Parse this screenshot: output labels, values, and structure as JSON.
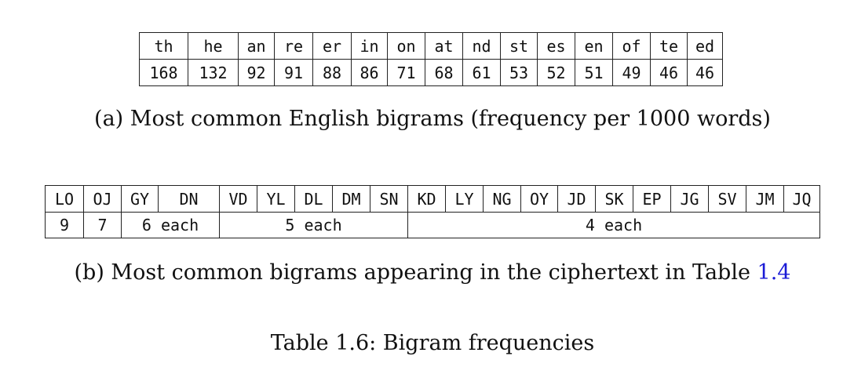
{
  "table_a": {
    "bigrams": [
      "th",
      "he",
      "an",
      "re",
      "er",
      "in",
      "on",
      "at",
      "nd",
      "st",
      "es",
      "en",
      "of",
      "te",
      "ed"
    ],
    "frequencies": [
      "168",
      "132",
      "92",
      "91",
      "88",
      "86",
      "71",
      "68",
      "61",
      "53",
      "52",
      "51",
      "49",
      "46",
      "46"
    ],
    "caption": "(a) Most common English bigrams (frequency per 1000 words)"
  },
  "table_b": {
    "bigrams": [
      "LO",
      "OJ",
      "GY",
      "DN",
      "VD",
      "YL",
      "DL",
      "DM",
      "SN",
      "KD",
      "LY",
      "NG",
      "OY",
      "JD",
      "SK",
      "EP",
      "JG",
      "SV",
      "JM",
      "JQ"
    ],
    "counts": [
      {
        "label": "9",
        "span": 1
      },
      {
        "label": "7",
        "span": 1
      },
      {
        "label": "6 each",
        "span": 2
      },
      {
        "label": "5 each",
        "span": 5
      },
      {
        "label": "4 each",
        "span": 11
      }
    ],
    "caption_text": "(b) Most common bigrams appearing in the ciphertext in Table ",
    "caption_ref": "1.4"
  },
  "table_caption": "Table 1.6: Bigram frequencies"
}
